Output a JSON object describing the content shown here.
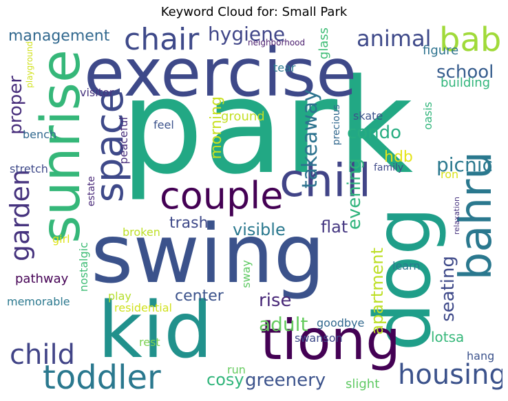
{
  "title": "Keyword Cloud for: Small Park",
  "words": [
    {
      "text": "park",
      "color": "#22a884"
    },
    {
      "text": "swing",
      "color": "#3b528b"
    },
    {
      "text": "exercise",
      "color": "#3e4989"
    },
    {
      "text": "sunrise",
      "color": "#35b779"
    },
    {
      "text": "kid",
      "color": "#21918c"
    },
    {
      "text": "dog",
      "color": "#1f9e89"
    },
    {
      "text": "tiong",
      "color": "#440154"
    },
    {
      "text": "chill",
      "color": "#414487"
    },
    {
      "text": "bahru",
      "color": "#2a788e"
    },
    {
      "text": "space",
      "color": "#3e4989"
    },
    {
      "text": "couple",
      "color": "#440154"
    },
    {
      "text": "toddler",
      "color": "#2a788e"
    },
    {
      "text": "housing",
      "color": "#3b528b"
    },
    {
      "text": "chair",
      "color": "#3e4989"
    },
    {
      "text": "baby",
      "color": "#a0da39"
    },
    {
      "text": "child",
      "color": "#414487"
    },
    {
      "text": "garden",
      "color": "#46337e"
    },
    {
      "text": "greenery",
      "color": "#3b528b"
    },
    {
      "text": "animal",
      "color": "#3e4989"
    },
    {
      "text": "hygiene",
      "color": "#404688"
    },
    {
      "text": "management",
      "color": "#31688e"
    },
    {
      "text": "school",
      "color": "#365c8d"
    },
    {
      "text": "takeaway",
      "color": "#2c728e"
    },
    {
      "text": "condo",
      "color": "#27ad81"
    },
    {
      "text": "evening",
      "color": "#2fb47c"
    },
    {
      "text": "picnic",
      "color": "#2a788e"
    },
    {
      "text": "hdb",
      "color": "#e5e419"
    },
    {
      "text": "seating",
      "color": "#3e4989"
    },
    {
      "text": "apartment",
      "color": "#bddf26"
    },
    {
      "text": "adult",
      "color": "#65cb5e"
    },
    {
      "text": "rise",
      "color": "#482878"
    },
    {
      "text": "center",
      "color": "#3b528b"
    },
    {
      "text": "trash",
      "color": "#3e4989"
    },
    {
      "text": "visible",
      "color": "#2a788e"
    },
    {
      "text": "flat",
      "color": "#453781"
    },
    {
      "text": "proper",
      "color": "#472d7b"
    },
    {
      "text": "morning",
      "color": "#c8e020"
    },
    {
      "text": "cosy",
      "color": "#31b57b"
    },
    {
      "text": "lotsa",
      "color": "#35b779"
    },
    {
      "text": "building",
      "color": "#31b57b"
    },
    {
      "text": "figure",
      "color": "#2c728e"
    },
    {
      "text": "glass",
      "color": "#3dbc74"
    },
    {
      "text": "neighborhood",
      "color": "#481a6c"
    },
    {
      "text": "tear",
      "color": "#2a788e"
    },
    {
      "text": "oasis",
      "color": "#31b57b"
    },
    {
      "text": "skate",
      "color": "#3b528b"
    },
    {
      "text": "family",
      "color": "#3e4989"
    },
    {
      "text": "ron",
      "color": "#d8e219"
    },
    {
      "text": "visitor",
      "color": "#46327e"
    },
    {
      "text": "feel",
      "color": "#3b528b"
    },
    {
      "text": "ground",
      "color": "#c2df23"
    },
    {
      "text": "precious",
      "color": "#31688e"
    },
    {
      "text": "peaceful",
      "color": "#472d7b"
    },
    {
      "text": "estate",
      "color": "#482878"
    },
    {
      "text": "bench",
      "color": "#31688e"
    },
    {
      "text": "stretch",
      "color": "#3e4989"
    },
    {
      "text": "playground",
      "color": "#d0e11c"
    },
    {
      "text": "broken",
      "color": "#bddf26"
    },
    {
      "text": "girl",
      "color": "#dde318"
    },
    {
      "text": "nostalgic",
      "color": "#3dbc74"
    },
    {
      "text": "pathway",
      "color": "#440154"
    },
    {
      "text": "memorable",
      "color": "#2a788e"
    },
    {
      "text": "play",
      "color": "#b5de2b"
    },
    {
      "text": "residential",
      "color": "#d0e11c"
    },
    {
      "text": "sway",
      "color": "#5ec962"
    },
    {
      "text": "learn",
      "color": "#2a788e"
    },
    {
      "text": "relaxation",
      "color": "#46327e"
    },
    {
      "text": "goodbye",
      "color": "#31688e"
    },
    {
      "text": "swanson",
      "color": "#3e4989"
    },
    {
      "text": "rest",
      "color": "#7ad151"
    },
    {
      "text": "run",
      "color": "#65cb5e"
    },
    {
      "text": "slight",
      "color": "#5ec962"
    },
    {
      "text": "hang",
      "color": "#3b528b"
    }
  ]
}
